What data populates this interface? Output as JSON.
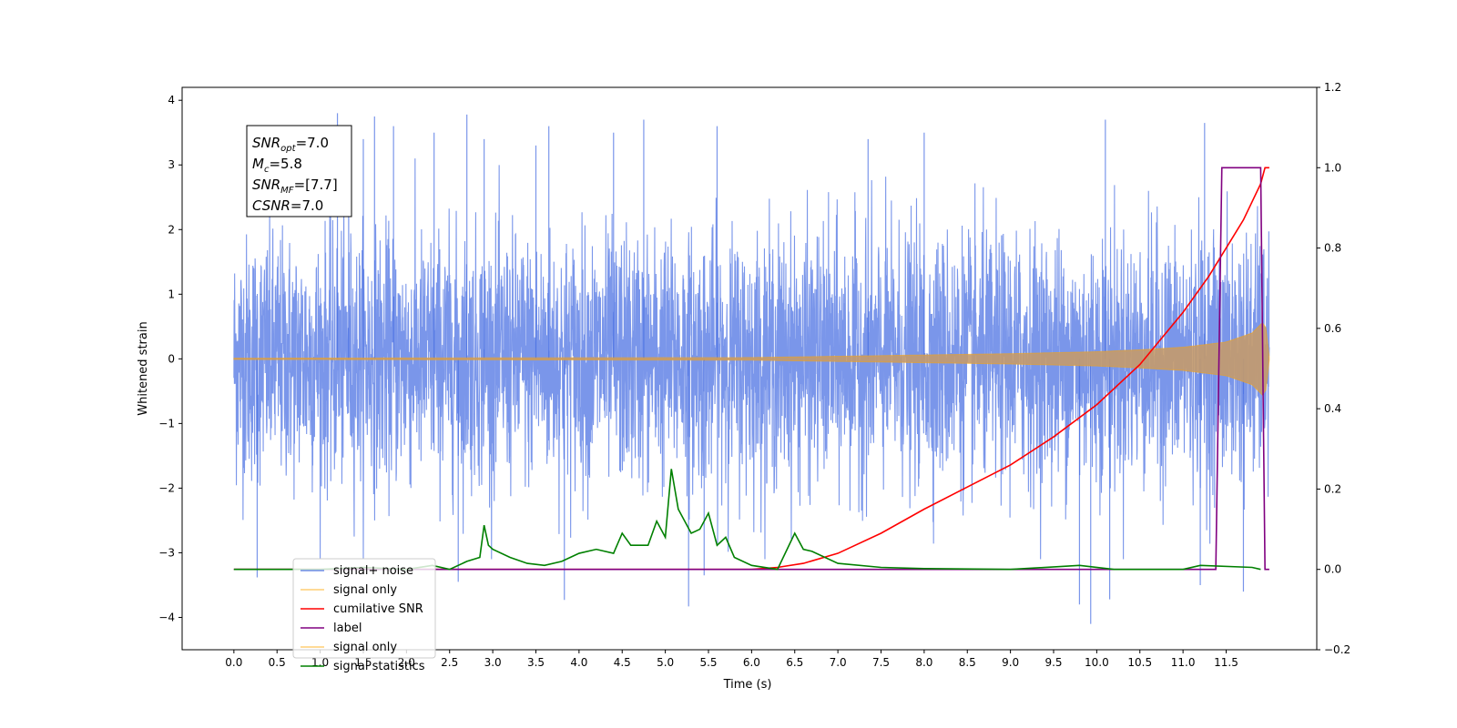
{
  "chart_data": {
    "type": "line",
    "title": "",
    "xlabel": "Time (s)",
    "ylabel_left": "Whitened strain",
    "ylabel_right": "",
    "xlim": [
      -0.6,
      12.55
    ],
    "ylim_left": [
      -4.5,
      4.2
    ],
    "ylim_right": [
      -0.2,
      1.2
    ],
    "x_ticks": [
      0,
      0.5,
      1,
      1.5,
      2,
      2.5,
      3,
      3.5,
      4,
      4.5,
      5,
      5.5,
      6,
      6.5,
      7,
      7.5,
      8,
      8.5,
      9,
      9.5,
      10,
      10.5,
      11,
      11.5
    ],
    "x_tick_labels": [
      "0.0",
      "0.5",
      "1.0",
      "1.5",
      "2.0",
      "2.5",
      "3.0",
      "3.5",
      "4.0",
      "4.5",
      "5.0",
      "5.5",
      "6.0",
      "6.5",
      "7.0",
      "7.5",
      "8.0",
      "8.5",
      "9.0",
      "9.5",
      "10.0",
      "10.5",
      "11.0",
      "11.5"
    ],
    "y_left_ticks": [
      4,
      3,
      2,
      1,
      0,
      -1,
      -2,
      -3,
      -4
    ],
    "y_left_tick_labels": [
      "4",
      "3",
      "2",
      "1",
      "0",
      "−1",
      "−2",
      "−3",
      "−4"
    ],
    "y_right_ticks": [
      1.2,
      1.0,
      0.8,
      0.6,
      0.4,
      0.2,
      0.0,
      -0.2
    ],
    "y_right_tick_labels": [
      "1.2",
      "1.0",
      "0.8",
      "0.6",
      "0.4",
      "0.2",
      "0.0",
      "−0.2"
    ],
    "grid": false,
    "legend_position": "lower-left",
    "annotation_box": [
      {
        "main": "SNR",
        "sub": "opt",
        "rest": "=7.0"
      },
      {
        "main": "M",
        "sub": "c",
        "rest": "=5.8"
      },
      {
        "main": "SNR",
        "sub": "MF",
        "rest": "=[7.7]"
      },
      {
        "main": "CSNR",
        "sub": "",
        "rest": "=7.0"
      }
    ],
    "series": [
      {
        "name": "signal+ noise",
        "axis": "left",
        "color": "#4169e1",
        "description_type": "noise",
        "x_range": [
          0,
          12
        ],
        "noise_std": 0.95,
        "spike_peaks": [
          {
            "x": 1.2,
            "y": 3.8
          },
          {
            "x": 1.33,
            "y": 3.3
          },
          {
            "x": 1.5,
            "y": 3.4
          },
          {
            "x": 1.63,
            "y": 3.75
          },
          {
            "x": 1.85,
            "y": 3.6
          },
          {
            "x": 2.32,
            "y": 3.5
          },
          {
            "x": 2.7,
            "y": 3.78
          },
          {
            "x": 2.9,
            "y": 3.4
          },
          {
            "x": 3.5,
            "y": 3.3
          },
          {
            "x": 3.65,
            "y": 3.6
          },
          {
            "x": 4.4,
            "y": 3.5
          },
          {
            "x": 4.75,
            "y": 3.7
          },
          {
            "x": 5.6,
            "y": 3.6
          },
          {
            "x": 7.35,
            "y": 3.4
          },
          {
            "x": 8.0,
            "y": 3.5
          },
          {
            "x": 10.1,
            "y": 3.7
          },
          {
            "x": 11.25,
            "y": 3.65
          },
          {
            "x": 0.27,
            "y": -3.38
          },
          {
            "x": 2.6,
            "y": -3.45
          },
          {
            "x": 3.83,
            "y": -3.73
          },
          {
            "x": 5.27,
            "y": -3.83
          },
          {
            "x": 5.45,
            "y": -3.35
          },
          {
            "x": 9.8,
            "y": -3.8
          },
          {
            "x": 9.93,
            "y": -4.1
          },
          {
            "x": 10.15,
            "y": -3.72
          },
          {
            "x": 11.2,
            "y": -3.5
          },
          {
            "x": 11.7,
            "y": -3.6
          }
        ]
      },
      {
        "name": "signal only",
        "axis": "left",
        "color": "#ffa500",
        "description_type": "chirp_envelope",
        "envelope": {
          "x": [
            0,
            6.0,
            7.0,
            8.0,
            9.0,
            10.0,
            10.5,
            11.0,
            11.5,
            11.8,
            11.95,
            12.0
          ],
          "y": [
            0.01,
            0.02,
            0.04,
            0.06,
            0.08,
            0.11,
            0.14,
            0.18,
            0.26,
            0.4,
            0.6,
            0.02
          ]
        }
      },
      {
        "name": "cumilative SNR",
        "axis": "right",
        "color": "#ff0000",
        "x": [
          0,
          6.0,
          6.3,
          6.6,
          7.0,
          7.5,
          8.0,
          8.5,
          9.0,
          9.5,
          10.0,
          10.5,
          11.0,
          11.3,
          11.5,
          11.7,
          11.9,
          11.95,
          12.0
        ],
        "y": [
          0.0,
          0.0,
          0.005,
          0.015,
          0.04,
          0.09,
          0.15,
          0.205,
          0.26,
          0.33,
          0.41,
          0.51,
          0.64,
          0.73,
          0.8,
          0.87,
          0.96,
          1.0,
          1.0
        ]
      },
      {
        "name": "label",
        "axis": "right",
        "color": "#800080",
        "x": [
          0,
          11.38,
          11.45,
          11.9,
          11.95,
          12.0
        ],
        "y": [
          0.0,
          0.0,
          1.0,
          1.0,
          0.0,
          0.0
        ]
      },
      {
        "name": "signal statistics",
        "axis": "right",
        "color": "#008000",
        "x": [
          0,
          0.5,
          1.0,
          1.5,
          2.0,
          2.3,
          2.5,
          2.7,
          2.85,
          2.9,
          2.95,
          3.0,
          3.2,
          3.4,
          3.6,
          3.8,
          4.0,
          4.2,
          4.4,
          4.5,
          4.6,
          4.8,
          4.9,
          5.0,
          5.07,
          5.15,
          5.3,
          5.4,
          5.5,
          5.6,
          5.7,
          5.8,
          6.0,
          6.3,
          6.5,
          6.6,
          6.7,
          7.0,
          7.5,
          8.0,
          9.0,
          9.8,
          10.2,
          11.0,
          11.2,
          11.8,
          11.9
        ],
        "y": [
          0.0,
          0.0,
          0.0,
          0.005,
          0.0,
          0.01,
          0.0,
          0.02,
          0.03,
          0.11,
          0.06,
          0.05,
          0.03,
          0.015,
          0.01,
          0.02,
          0.04,
          0.05,
          0.04,
          0.09,
          0.06,
          0.06,
          0.12,
          0.08,
          0.25,
          0.15,
          0.09,
          0.1,
          0.14,
          0.06,
          0.08,
          0.03,
          0.01,
          0.0,
          0.09,
          0.05,
          0.045,
          0.015,
          0.005,
          0.002,
          0.0,
          0.01,
          0.0,
          0.0,
          0.01,
          0.005,
          0.0
        ]
      },
      {
        "name": "signal only",
        "axis": "right",
        "color": "#ffa500",
        "legend_only": true
      }
    ]
  }
}
